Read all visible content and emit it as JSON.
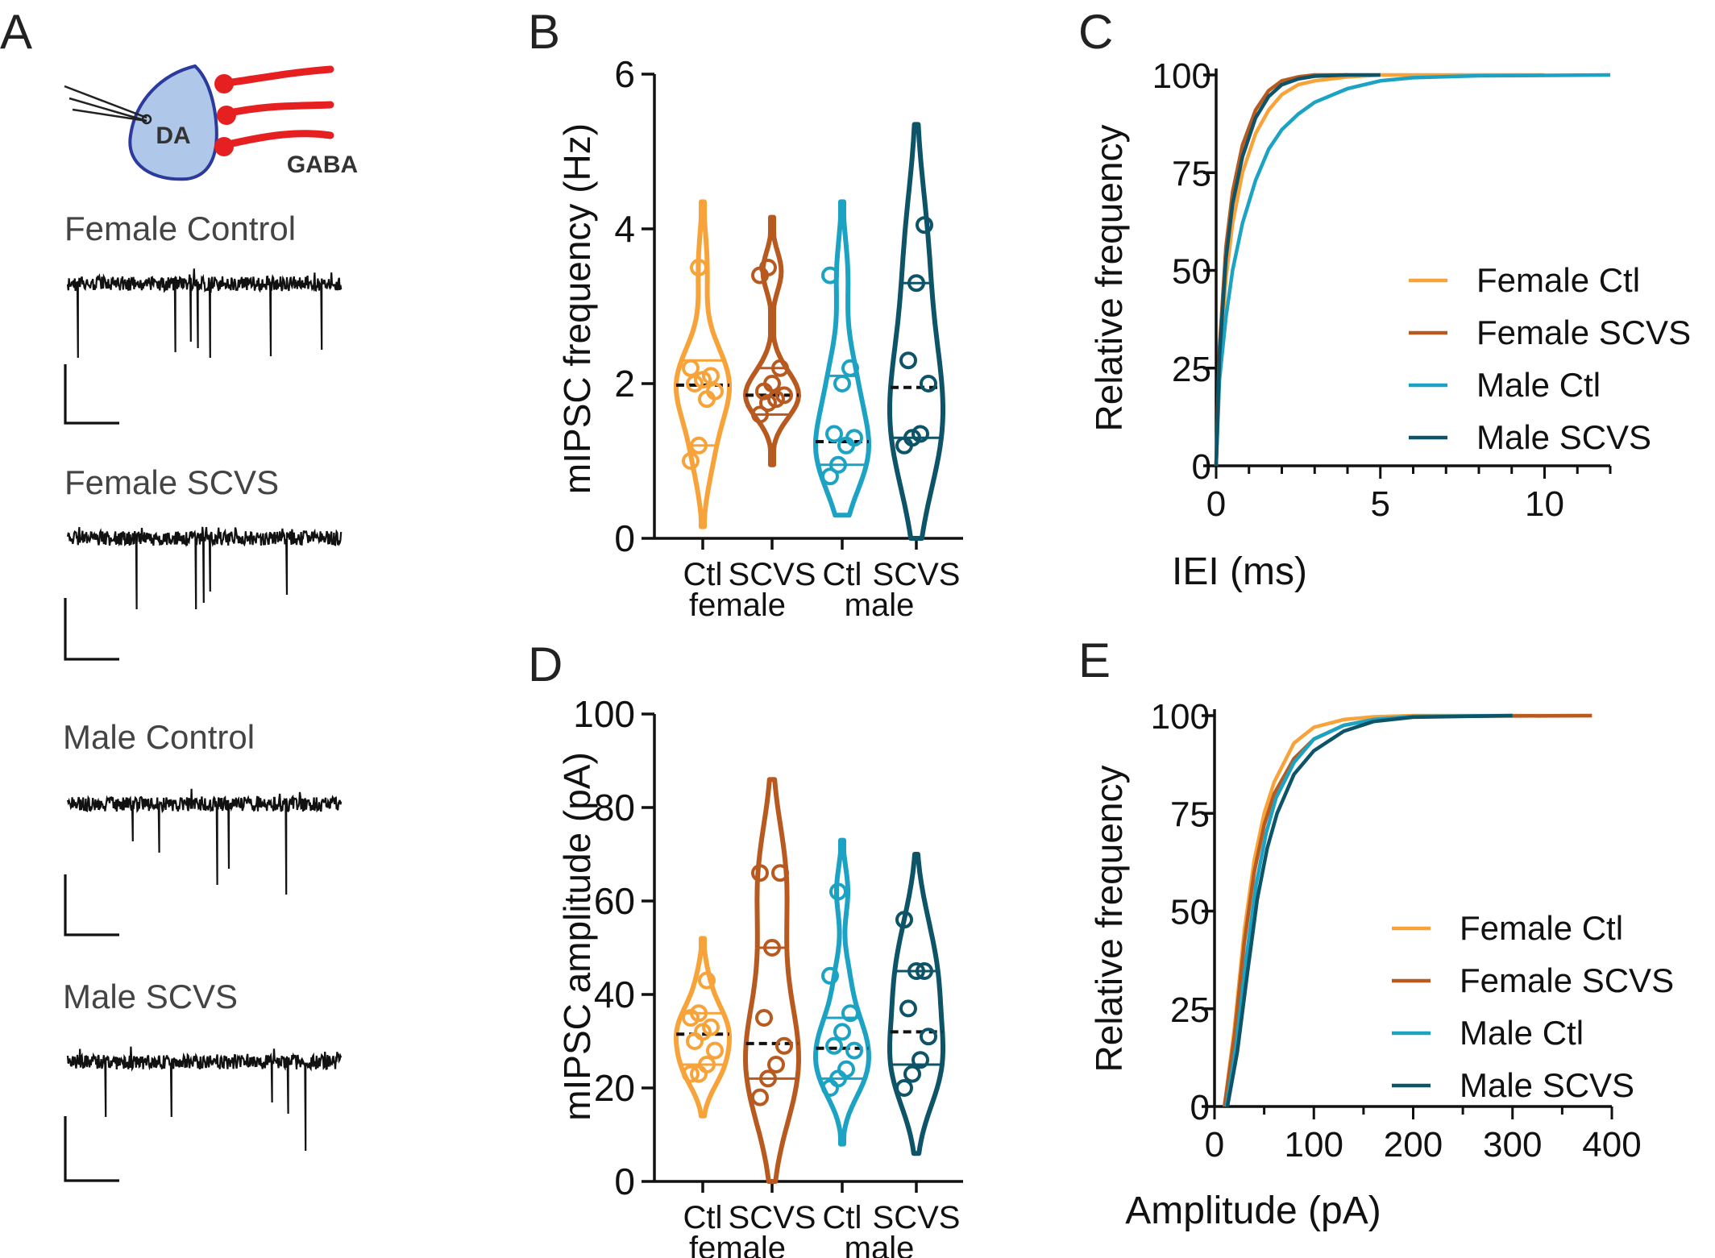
{
  "colors": {
    "female_ctl": "#F7A33A",
    "female_scvs": "#B85A20",
    "male_ctl": "#1CA3C4",
    "male_scvs": "#0E5468",
    "trace": "#111111",
    "neuron_fill": "#AFC8E9",
    "neuron_stroke": "#2B3A9C",
    "gaba": "#E62020"
  },
  "panel_letters": [
    "A",
    "B",
    "C",
    "D",
    "E"
  ],
  "panel_a": {
    "neuron_label": "DA",
    "gaba_label": "GABA",
    "traces": [
      {
        "label": "Female Control"
      },
      {
        "label": "Female SCVS"
      },
      {
        "label": "Male Control"
      },
      {
        "label": "Male SCVS"
      }
    ]
  },
  "chart_data": [
    {
      "panel": "B",
      "type": "violin",
      "ylabel": "mIPSC frequency (Hz)",
      "ylim": [
        0,
        6
      ],
      "yticks": [
        0,
        2,
        4,
        6
      ],
      "categories": [
        "Ctl",
        "SCVS",
        "Ctl",
        "SCVS"
      ],
      "group_labels": [
        "female",
        "female",
        "male",
        "male"
      ],
      "series": [
        {
          "group": "female",
          "name": "Ctl",
          "color_key": "female_ctl",
          "range": [
            0.15,
            4.35
          ],
          "median": 1.98,
          "quartiles": [
            1.2,
            2.3
          ],
          "points": [
            1.0,
            1.2,
            1.8,
            1.9,
            2.0,
            2.05,
            2.1,
            2.2,
            3.5
          ]
        },
        {
          "group": "female",
          "name": "SCVS",
          "color_key": "female_scvs",
          "range": [
            0.95,
            4.15
          ],
          "median": 1.85,
          "quartiles": [
            1.6,
            2.2
          ],
          "points": [
            1.6,
            1.75,
            1.8,
            1.85,
            1.9,
            2.0,
            2.2,
            3.4,
            3.5
          ]
        },
        {
          "group": "male",
          "name": "Ctl",
          "color_key": "male_ctl",
          "range": [
            0.3,
            4.35
          ],
          "median": 1.25,
          "quartiles": [
            0.95,
            2.1
          ],
          "points": [
            0.8,
            0.95,
            1.2,
            1.3,
            1.35,
            2.0,
            2.2,
            3.4
          ]
        },
        {
          "group": "male",
          "name": "SCVS",
          "color_key": "male_scvs",
          "range": [
            0.0,
            5.35
          ],
          "median": 1.95,
          "quartiles": [
            1.3,
            3.3
          ],
          "points": [
            1.2,
            1.3,
            1.35,
            2.0,
            2.3,
            3.3,
            4.05
          ]
        }
      ]
    },
    {
      "panel": "C",
      "type": "line",
      "xlabel": "IEI  (ms)",
      "ylabel": "Relative frequency",
      "xlim": [
        0,
        12
      ],
      "ylim": [
        0,
        100
      ],
      "xticks": [
        0,
        5,
        10
      ],
      "yticks": [
        0,
        25,
        50,
        75,
        100
      ],
      "legend_position": "right",
      "series": [
        {
          "name": "Female Ctl",
          "color_key": "female_ctl",
          "x_end": 10.0,
          "points": [
            [
              0,
              0
            ],
            [
              0.1,
              25
            ],
            [
              0.3,
              48
            ],
            [
              0.5,
              62
            ],
            [
              0.8,
              75
            ],
            [
              1.2,
              85
            ],
            [
              1.6,
              91
            ],
            [
              2.0,
              95
            ],
            [
              2.5,
              97.5
            ],
            [
              3.0,
              98.5
            ],
            [
              4.0,
              99.5
            ],
            [
              5.0,
              100
            ],
            [
              10.0,
              100
            ]
          ]
        },
        {
          "name": "Female SCVS",
          "color_key": "female_scvs",
          "x_end": 4.0,
          "points": [
            [
              0,
              0
            ],
            [
              0.1,
              30
            ],
            [
              0.3,
              56
            ],
            [
              0.5,
              70
            ],
            [
              0.8,
              82
            ],
            [
              1.2,
              91
            ],
            [
              1.6,
              96
            ],
            [
              2.0,
              98.5
            ],
            [
              2.5,
              99.5
            ],
            [
              3.0,
              100
            ],
            [
              4.0,
              100
            ]
          ]
        },
        {
          "name": "Male Ctl",
          "color_key": "male_ctl",
          "x_end": 12.0,
          "points": [
            [
              0,
              0
            ],
            [
              0.1,
              22
            ],
            [
              0.3,
              38
            ],
            [
              0.5,
              50
            ],
            [
              0.8,
              62
            ],
            [
              1.2,
              73
            ],
            [
              1.6,
              81
            ],
            [
              2.0,
              86
            ],
            [
              2.5,
              90
            ],
            [
              3.0,
              93
            ],
            [
              4.0,
              96.5
            ],
            [
              5.0,
              98.5
            ],
            [
              6.0,
              99.3
            ],
            [
              8.0,
              99.8
            ],
            [
              12.0,
              100
            ]
          ]
        },
        {
          "name": "Male SCVS",
          "color_key": "male_scvs",
          "x_end": 5.0,
          "points": [
            [
              0,
              0
            ],
            [
              0.1,
              28
            ],
            [
              0.3,
              53
            ],
            [
              0.5,
              67
            ],
            [
              0.8,
              79
            ],
            [
              1.2,
              89
            ],
            [
              1.6,
              94.5
            ],
            [
              2.0,
              97.5
            ],
            [
              2.5,
              99
            ],
            [
              3.0,
              99.7
            ],
            [
              4.0,
              100
            ],
            [
              5.0,
              100
            ]
          ]
        }
      ]
    },
    {
      "panel": "D",
      "type": "violin",
      "ylabel": "mIPSC amplitude (pA)",
      "ylim": [
        0,
        100
      ],
      "yticks": [
        0,
        20,
        40,
        60,
        80,
        100
      ],
      "categories": [
        "Ctl",
        "SCVS",
        "Ctl",
        "SCVS"
      ],
      "group_labels": [
        "female",
        "female",
        "male",
        "male"
      ],
      "series": [
        {
          "group": "female",
          "name": "Ctl",
          "color_key": "female_ctl",
          "range": [
            14,
            52
          ],
          "median": 31.5,
          "quartiles": [
            25,
            36
          ],
          "points": [
            23,
            23,
            25,
            28,
            30,
            32,
            33,
            35,
            36,
            43
          ]
        },
        {
          "group": "female",
          "name": "SCVS",
          "color_key": "female_scvs",
          "range": [
            0,
            86
          ],
          "median": 29.5,
          "quartiles": [
            22,
            50
          ],
          "points": [
            18,
            22,
            25,
            29,
            35,
            50,
            66,
            66
          ]
        },
        {
          "group": "male",
          "name": "Ctl",
          "color_key": "male_ctl",
          "range": [
            8,
            73
          ],
          "median": 28.5,
          "quartiles": [
            22,
            35
          ],
          "points": [
            20,
            22,
            24,
            28,
            29,
            32,
            36,
            44,
            62
          ]
        },
        {
          "group": "male",
          "name": "SCVS",
          "color_key": "male_scvs",
          "range": [
            6,
            70
          ],
          "median": 32,
          "quartiles": [
            25,
            45
          ],
          "points": [
            20,
            23,
            26,
            31,
            37,
            45,
            45,
            56
          ]
        }
      ]
    },
    {
      "panel": "E",
      "type": "line",
      "xlabel": "Amplitude (pA)",
      "ylabel": "Relative frequency",
      "xlim": [
        0,
        400
      ],
      "ylim": [
        0,
        100
      ],
      "xticks": [
        0,
        100,
        200,
        300,
        400
      ],
      "yticks": [
        0,
        25,
        50,
        75,
        100
      ],
      "legend_position": "right",
      "series": [
        {
          "name": "Female Ctl",
          "color_key": "female_ctl",
          "x_end": 380,
          "points": [
            [
              10,
              0
            ],
            [
              20,
              20
            ],
            [
              30,
              45
            ],
            [
              40,
              63
            ],
            [
              50,
              75
            ],
            [
              60,
              83
            ],
            [
              80,
              93
            ],
            [
              100,
              97
            ],
            [
              130,
              99
            ],
            [
              160,
              99.7
            ],
            [
              200,
              100
            ],
            [
              380,
              100
            ]
          ]
        },
        {
          "name": "Female SCVS",
          "color_key": "female_scvs",
          "x_end": 380,
          "points": [
            [
              10,
              0
            ],
            [
              20,
              18
            ],
            [
              30,
              42
            ],
            [
              40,
              60
            ],
            [
              50,
              72
            ],
            [
              60,
              80
            ],
            [
              80,
              89
            ],
            [
              100,
              94
            ],
            [
              130,
              97.5
            ],
            [
              160,
              99
            ],
            [
              200,
              99.8
            ],
            [
              380,
              100
            ]
          ]
        },
        {
          "name": "Male Ctl",
          "color_key": "male_ctl",
          "x_end": 300,
          "points": [
            [
              12,
              0
            ],
            [
              22,
              16
            ],
            [
              32,
              38
            ],
            [
              42,
              57
            ],
            [
              52,
              70
            ],
            [
              62,
              79
            ],
            [
              80,
              88
            ],
            [
              100,
              94
            ],
            [
              130,
              97.5
            ],
            [
              160,
              99
            ],
            [
              200,
              99.8
            ],
            [
              300,
              100
            ]
          ]
        },
        {
          "name": "Male SCVS",
          "color_key": "male_scvs",
          "x_end": 300,
          "points": [
            [
              13,
              0
            ],
            [
              23,
              14
            ],
            [
              33,
              34
            ],
            [
              43,
              53
            ],
            [
              53,
              66
            ],
            [
              63,
              75
            ],
            [
              80,
              85
            ],
            [
              100,
              91
            ],
            [
              130,
              96
            ],
            [
              160,
              98.5
            ],
            [
              200,
              99.6
            ],
            [
              300,
              100
            ]
          ]
        }
      ]
    }
  ]
}
